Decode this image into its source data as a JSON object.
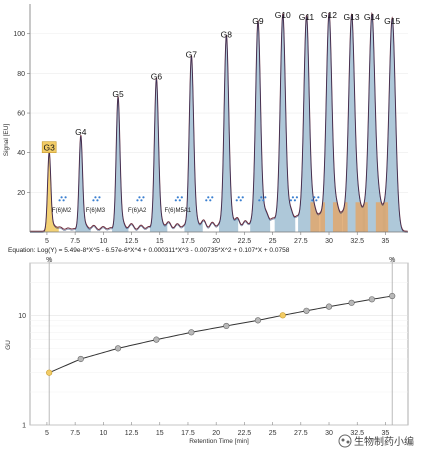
{
  "chart_data": [
    {
      "type": "line",
      "title": "",
      "xlabel": "",
      "ylabel": "Signal [EU]",
      "xlim": [
        3.5,
        37
      ],
      "ylim": [
        0,
        115
      ],
      "x_ticks": [
        "5",
        "7.5",
        "10",
        "12.5",
        "15",
        "17.5",
        "20",
        "22.5",
        "25",
        "27.5",
        "30",
        "32.5",
        "35"
      ],
      "y_ticks": [
        "20",
        "40",
        "60",
        "80",
        "100"
      ],
      "peaks": [
        {
          "label": "G3",
          "x": 5.2,
          "y": 39
        },
        {
          "label": "G4",
          "x": 8.0,
          "y": 47
        },
        {
          "label": "G5",
          "x": 11.3,
          "y": 66
        },
        {
          "label": "G6",
          "x": 14.7,
          "y": 75
        },
        {
          "label": "G7",
          "x": 17.8,
          "y": 86
        },
        {
          "label": "G8",
          "x": 20.9,
          "y": 96
        },
        {
          "label": "G9",
          "x": 23.7,
          "y": 103
        },
        {
          "label": "G10",
          "x": 25.9,
          "y": 106
        },
        {
          "label": "G11",
          "x": 28.0,
          "y": 105
        },
        {
          "label": "G12",
          "x": 30.0,
          "y": 106
        },
        {
          "label": "G13",
          "x": 32.0,
          "y": 105
        },
        {
          "label": "G14",
          "x": 33.8,
          "y": 105
        },
        {
          "label": "G15",
          "x": 35.6,
          "y": 103
        }
      ],
      "annotations": [
        {
          "label": "F(6)M2",
          "x": 6.3
        },
        {
          "label": "F(6)M3",
          "x": 9.3
        },
        {
          "label": "F(6)A2",
          "x": 13.0
        },
        {
          "label": "F(6)M5A1",
          "x": 16.6
        }
      ],
      "colors": {
        "trace": "#6b2a3a",
        "fill_blue": "#93b5cc",
        "fill_orange": "#e7a35e",
        "highlight": "#f2cc66",
        "glycan": "#3a7fd0"
      }
    },
    {
      "type": "scatter",
      "equation": "Equation: Log(Y) = 5.49e-8*X^5 - 6.57e-6*X^4 + 0.000311*X^3 - 0.00735*X^2 + 0.107*X + 0.0758",
      "xlabel": "Retention Time [min]",
      "ylabel": "GU",
      "yscale": "log",
      "xlim": [
        3.5,
        37
      ],
      "ylim": [
        1,
        30
      ],
      "x_ticks": [
        "5",
        "7.5",
        "10",
        "12.5",
        "15",
        "17.5",
        "20",
        "22.5",
        "25",
        "27.5",
        "30",
        "32.5",
        "35"
      ],
      "y_ticks": [
        "1",
        "10"
      ],
      "marker_labels": [
        "%",
        "%"
      ],
      "x": [
        5.2,
        8.0,
        11.3,
        14.7,
        17.8,
        20.9,
        23.7,
        25.9,
        28.0,
        30.0,
        32.0,
        33.8,
        35.6
      ],
      "y": [
        3,
        4,
        5,
        6,
        7,
        8,
        9,
        10,
        11,
        12,
        13,
        14,
        15
      ],
      "highlighted_x": [
        5.2,
        25.9
      ],
      "colors": {
        "point": "#b8b8b8",
        "highlight": "#f2cc66",
        "curve": "#333333"
      }
    }
  ],
  "watermark": "生物制药小编"
}
